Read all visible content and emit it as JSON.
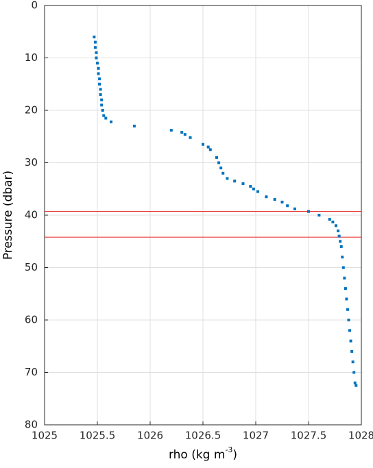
{
  "chart_data": {
    "type": "scatter",
    "xlabel": {
      "text": "rho (kg m",
      "sup": "-3",
      "tail": ")"
    },
    "ylabel": "Pressure (dbar)",
    "xlim": [
      1025,
      1028
    ],
    "xticks": [
      1025,
      1025.5,
      1026,
      1026.5,
      1027,
      1027.5,
      1028
    ],
    "ylim": [
      0,
      80
    ],
    "yticks": [
      0,
      10,
      20,
      30,
      40,
      50,
      60,
      70,
      80
    ],
    "y_reversed": true,
    "grid": true,
    "hlines": {
      "color": "#e8201a",
      "values": [
        39.3,
        44.2
      ]
    },
    "series": [
      {
        "color": "#0072bd",
        "x": [
          1025.47,
          1025.48,
          1025.48,
          1025.49,
          1025.49,
          1025.5,
          1025.51,
          1025.51,
          1025.52,
          1025.52,
          1025.53,
          1025.53,
          1025.54,
          1025.54,
          1025.55,
          1025.56,
          1025.58,
          1025.63,
          1025.85,
          1026.2,
          1026.3,
          1026.33,
          1026.38,
          1026.5,
          1026.55,
          1026.57,
          1026.63,
          1026.65,
          1026.67,
          1026.69,
          1026.73,
          1026.8,
          1026.88,
          1026.95,
          1026.98,
          1027.02,
          1027.1,
          1027.18,
          1027.25,
          1027.3,
          1027.37,
          1027.5,
          1027.6,
          1027.7,
          1027.73,
          1027.76,
          1027.78,
          1027.79,
          1027.8,
          1027.81,
          1027.82,
          1027.83,
          1027.84,
          1027.85,
          1027.86,
          1027.87,
          1027.88,
          1027.89,
          1027.9,
          1027.91,
          1027.92,
          1027.93,
          1027.94,
          1027.95
        ],
        "values": [
          6,
          7,
          8,
          9,
          10,
          11,
          12,
          13,
          14,
          15,
          16,
          17,
          18,
          19,
          20,
          21,
          21.5,
          22.2,
          23,
          23.8,
          24.2,
          24.6,
          25.2,
          26.5,
          27,
          27.5,
          29,
          30,
          31,
          32,
          33,
          33.5,
          34,
          34.5,
          35,
          35.5,
          36.5,
          37,
          37.5,
          38.2,
          38.8,
          39.3,
          40,
          40.8,
          41.3,
          42,
          43,
          44,
          45,
          46,
          48,
          50,
          52,
          54,
          56,
          58,
          60,
          62,
          64,
          66,
          68,
          70,
          72,
          72.5
        ]
      }
    ]
  }
}
